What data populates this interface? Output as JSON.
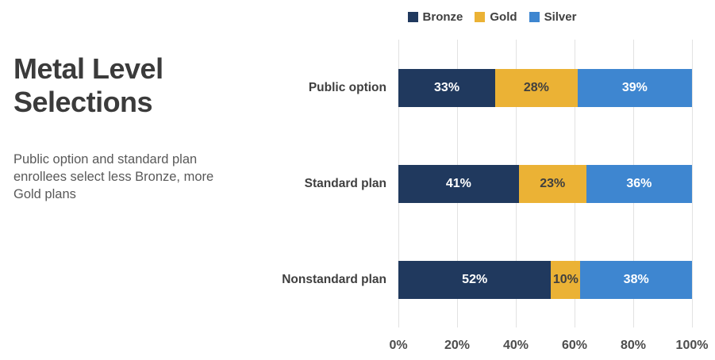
{
  "panel": {
    "title": "Metal Level\nSelections",
    "subtitle": "Public option and standard plan\nenrollees select less Bronze, more\nGold plans"
  },
  "chart_data": {
    "type": "bar",
    "orientation": "horizontal",
    "stacked": true,
    "title": "Metal Level Selections",
    "subtitle": "Public option and standard plan enrollees select less Bronze, more Gold plans",
    "categories": [
      "Public option",
      "Standard plan",
      "Nonstandard plan"
    ],
    "series": [
      {
        "name": "Bronze",
        "color": "#20395E",
        "label_color": "#FFFFFF",
        "values": [
          33,
          41,
          52
        ]
      },
      {
        "name": "Gold",
        "color": "#EBB235",
        "label_color": "#3F3F3F",
        "values": [
          28,
          23,
          10
        ]
      },
      {
        "name": "Silver",
        "color": "#3E86D0",
        "label_color": "#FFFFFF",
        "values": [
          39,
          36,
          38
        ]
      }
    ],
    "value_suffix": "%",
    "x_ticks": [
      "0%",
      "20%",
      "40%",
      "60%",
      "80%",
      "100%"
    ],
    "xlim": [
      0,
      100
    ],
    "grid": "vertical",
    "legend_position": "top",
    "colors": {
      "grid_line": "#E2E2E2",
      "axis_text": "#4D4D4D",
      "category_text": "#3F3F3F",
      "title_text": "#3B3B3B",
      "subtitle_text": "#595959",
      "legend_text": "#404040"
    }
  }
}
